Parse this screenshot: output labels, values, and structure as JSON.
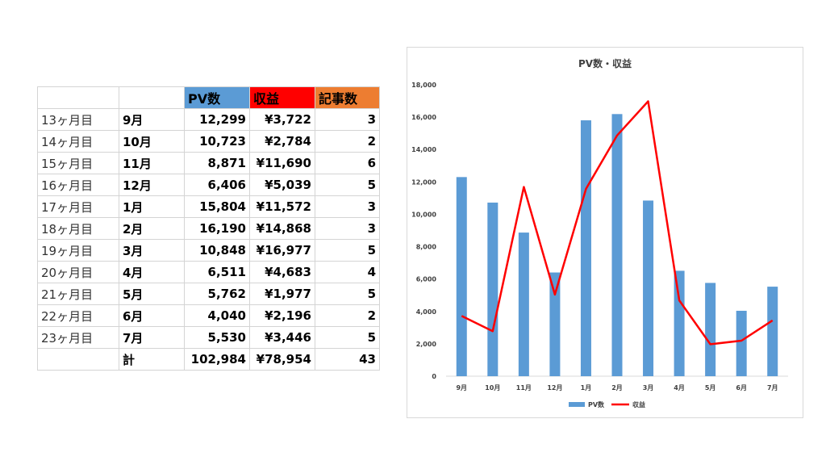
{
  "table": {
    "header": {
      "period": "",
      "month": "",
      "pv": "PV数",
      "revenue": "収益",
      "articles": "記事数"
    },
    "header_colors": {
      "pv": "#5b9bd5",
      "revenue": "#ff0000",
      "articles": "#ed7d31"
    },
    "rows": [
      {
        "period": "13ヶ月目",
        "month": "9月",
        "pv": "12,299",
        "revenue": "¥3,722",
        "articles": "3"
      },
      {
        "period": "14ヶ月目",
        "month": "10月",
        "pv": "10,723",
        "revenue": "¥2,784",
        "articles": "2"
      },
      {
        "period": "15ヶ月目",
        "month": "11月",
        "pv": "8,871",
        "revenue": "¥11,690",
        "articles": "6"
      },
      {
        "period": "16ヶ月目",
        "month": "12月",
        "pv": "6,406",
        "revenue": "¥5,039",
        "articles": "5"
      },
      {
        "period": "17ヶ月目",
        "month": "1月",
        "pv": "15,804",
        "revenue": "¥11,572",
        "articles": "3"
      },
      {
        "period": "18ヶ月目",
        "month": "2月",
        "pv": "16,190",
        "revenue": "¥14,868",
        "articles": "3"
      },
      {
        "period": "19ヶ月目",
        "month": "3月",
        "pv": "10,848",
        "revenue": "¥16,977",
        "articles": "5"
      },
      {
        "period": "20ヶ月目",
        "month": "4月",
        "pv": "6,511",
        "revenue": "¥4,683",
        "articles": "4"
      },
      {
        "period": "21ヶ月目",
        "month": "5月",
        "pv": "5,762",
        "revenue": "¥1,977",
        "articles": "5"
      },
      {
        "period": "22ヶ月目",
        "month": "6月",
        "pv": "4,040",
        "revenue": "¥2,196",
        "articles": "2"
      },
      {
        "period": "23ヶ月目",
        "month": "7月",
        "pv": "5,530",
        "revenue": "¥3,446",
        "articles": "5"
      }
    ],
    "total": {
      "period": "",
      "month": "計",
      "pv": "102,984",
      "revenue": "¥78,954",
      "articles": "43"
    }
  },
  "chart_data": {
    "type": "bar",
    "title": "PV数・収益",
    "categories": [
      "9月",
      "10月",
      "11月",
      "12月",
      "1月",
      "2月",
      "3月",
      "4月",
      "5月",
      "6月",
      "7月"
    ],
    "series": [
      {
        "name": "PV数",
        "type": "bar",
        "color": "#5b9bd5",
        "values": [
          12299,
          10723,
          8871,
          6406,
          15804,
          16190,
          10848,
          6511,
          5762,
          4040,
          5530
        ]
      },
      {
        "name": "収益",
        "type": "line",
        "color": "#ff0000",
        "values": [
          3722,
          2784,
          11690,
          5039,
          11572,
          14868,
          16977,
          4683,
          1977,
          2196,
          3446
        ]
      }
    ],
    "ylim": [
      0,
      18000
    ],
    "yticks": [
      "0",
      "2,000",
      "4,000",
      "6,000",
      "8,000",
      "10,000",
      "12,000",
      "14,000",
      "16,000",
      "18,000"
    ],
    "xlabel": "",
    "ylabel": "",
    "grid": false,
    "legend": "bottom"
  }
}
